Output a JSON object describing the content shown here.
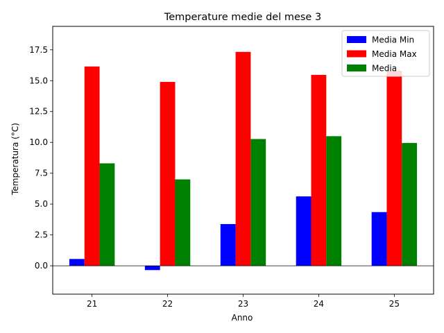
{
  "chart_data": {
    "type": "bar",
    "title": "Temperature medie del mese 3",
    "xlabel": "Anno",
    "ylabel": "Temperatura (°C)",
    "categories": [
      "21",
      "22",
      "23",
      "24",
      "25"
    ],
    "series": [
      {
        "name": "Media Min",
        "color": "#0000ff",
        "values": [
          0.55,
          -0.35,
          3.38,
          5.62,
          4.35
        ]
      },
      {
        "name": "Media Max",
        "color": "#ff0000",
        "values": [
          16.15,
          14.9,
          17.33,
          15.47,
          15.8
        ]
      },
      {
        "name": "Media",
        "color": "#008000",
        "values": [
          8.3,
          7.0,
          10.27,
          10.5,
          9.95
        ]
      }
    ],
    "ylim": [
      -2.3,
      19.4
    ],
    "yticks": [
      "0.0",
      "2.5",
      "5.0",
      "7.5",
      "10.0",
      "12.5",
      "15.0",
      "17.5"
    ],
    "grid": false,
    "zero_line": true,
    "legend_position": "top-right"
  }
}
